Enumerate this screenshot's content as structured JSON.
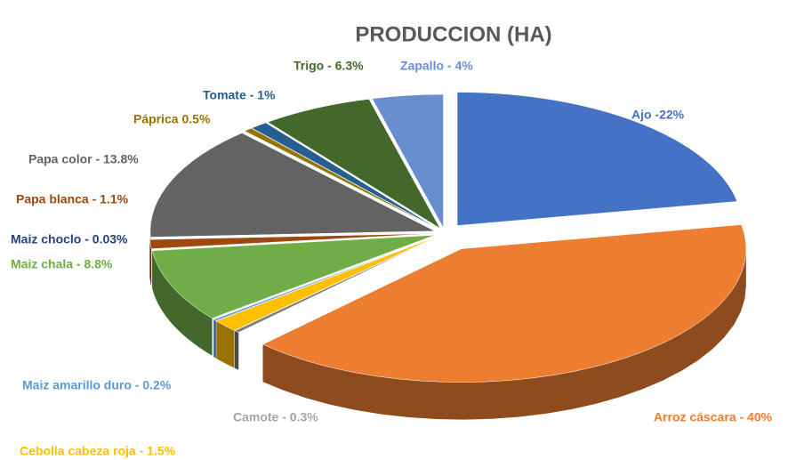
{
  "chart_data": {
    "type": "pie",
    "title": "PRODUCCION (HA)",
    "values": [
      22,
      40,
      0.3,
      1.5,
      0.2,
      8.8,
      0.03,
      1.1,
      13.8,
      0.5,
      1,
      6.3,
      4
    ],
    "value_labels": [
      "Ajo -22%",
      "Arroz cáscara - 40%",
      "Camote - 0.3%",
      "Cebolla cabeza roja - 1.5%",
      "Maiz amarillo duro - 0.2%",
      "Maiz chala - 8.8%",
      "Maiz choclo - 0.03%",
      "Papa blanca - 1.1%",
      "Papa color - 13.8%",
      "Páprica 0.5%",
      "Tomate - 1%",
      "Trigo - 6.3%",
      "Zapallo - 4%"
    ],
    "colors": [
      "#4472c4",
      "#ed7d31",
      "#7f7f7f",
      "#ffc000",
      "#5b9bd5",
      "#70ad47",
      "#264478",
      "#9e480e",
      "#636363",
      "#997300",
      "#255e91",
      "#43682b",
      "#698ed0"
    ],
    "label_colors": [
      "#4472c4",
      "#ed7d31",
      "#a5a5a5",
      "#ffc000",
      "#5b9bd5",
      "#70ad47",
      "#264478",
      "#9e480e",
      "#636363",
      "#997300",
      "#255e91",
      "#43682b",
      "#698ed0"
    ]
  }
}
